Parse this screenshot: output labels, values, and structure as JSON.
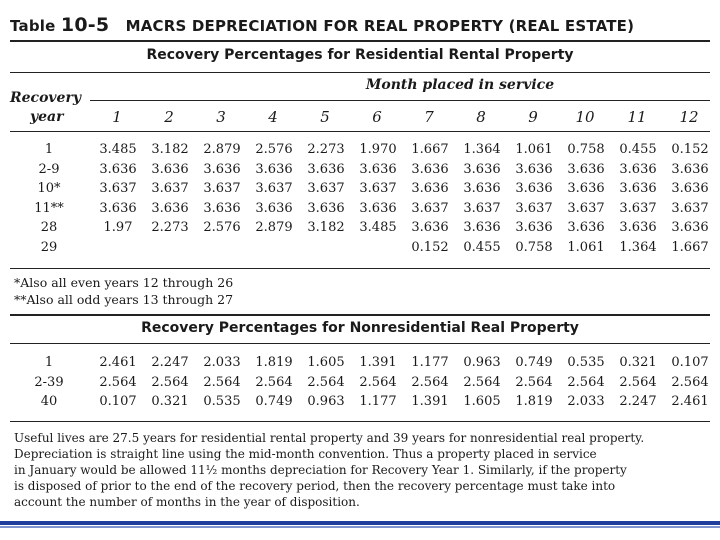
{
  "title_prefix": "Table",
  "table_number": "10-5",
  "title_main": "MACRS DEPRECIATION FOR REAL PROPERTY (REAL ESTATE)",
  "residential": {
    "heading": "Recovery Percentages for Residential Rental Property",
    "month_header": "Month placed in service",
    "recovery_label": "Recovery",
    "year_label": "year",
    "months": [
      "1",
      "2",
      "3",
      "4",
      "5",
      "6",
      "7",
      "8",
      "9",
      "10",
      "11",
      "12"
    ],
    "rows": [
      {
        "label": "1",
        "values": [
          "3.485",
          "3.182",
          "2.879",
          "2.576",
          "2.273",
          "1.970",
          "1.667",
          "1.364",
          "1.061",
          "0.758",
          "0.455",
          "0.152"
        ]
      },
      {
        "label": "2-9",
        "values": [
          "3.636",
          "3.636",
          "3.636",
          "3.636",
          "3.636",
          "3.636",
          "3.636",
          "3.636",
          "3.636",
          "3.636",
          "3.636",
          "3.636"
        ]
      },
      {
        "label": "10*",
        "values": [
          "3.637",
          "3.637",
          "3.637",
          "3.637",
          "3.637",
          "3.637",
          "3.636",
          "3.636",
          "3.636",
          "3.636",
          "3.636",
          "3.636"
        ]
      },
      {
        "label": "11**",
        "values": [
          "3.636",
          "3.636",
          "3.636",
          "3.636",
          "3.636",
          "3.636",
          "3.637",
          "3.637",
          "3.637",
          "3.637",
          "3.637",
          "3.637"
        ]
      },
      {
        "label": "28",
        "values": [
          "1.97",
          "2.273",
          "2.576",
          "2.879",
          "3.182",
          "3.485",
          "3.636",
          "3.636",
          "3.636",
          "3.636",
          "3.636",
          "3.636"
        ]
      },
      {
        "label": "29",
        "values": [
          "",
          "",
          "",
          "",
          "",
          "",
          "0.152",
          "0.455",
          "0.758",
          "1.061",
          "1.364",
          "1.667"
        ]
      }
    ],
    "footnote_1": "*Also all even years 12 through 26",
    "footnote_2": "**Also all odd years 13 through 27"
  },
  "nonresidential": {
    "heading": "Recovery Percentages for Nonresidential Real Property",
    "rows": [
      {
        "label": "1",
        "values": [
          "2.461",
          "2.247",
          "2.033",
          "1.819",
          "1.605",
          "1.391",
          "1.177",
          "0.963",
          "0.749",
          "0.535",
          "0.321",
          "0.107"
        ]
      },
      {
        "label": "2-39",
        "values": [
          "2.564",
          "2.564",
          "2.564",
          "2.564",
          "2.564",
          "2.564",
          "2.564",
          "2.564",
          "2.564",
          "2.564",
          "2.564",
          "2.564"
        ]
      },
      {
        "label": "40",
        "values": [
          "0.107",
          "0.321",
          "0.535",
          "0.749",
          "0.963",
          "1.177",
          "1.391",
          "1.605",
          "1.819",
          "2.033",
          "2.247",
          "2.461"
        ]
      }
    ]
  },
  "note_lines": [
    "Useful lives are 27.5 years for residential rental property and 39 years for nonresidential real property.",
    "Depreciation is straight line using the mid-month convention. Thus a property placed in service",
    "in January would be allowed 11½ months depreciation for Recovery Year 1. Similarly, if the property",
    "is disposed of prior to the end of the recovery period, then the recovery percentage must take into",
    "account the number of months in the year of disposition."
  ]
}
